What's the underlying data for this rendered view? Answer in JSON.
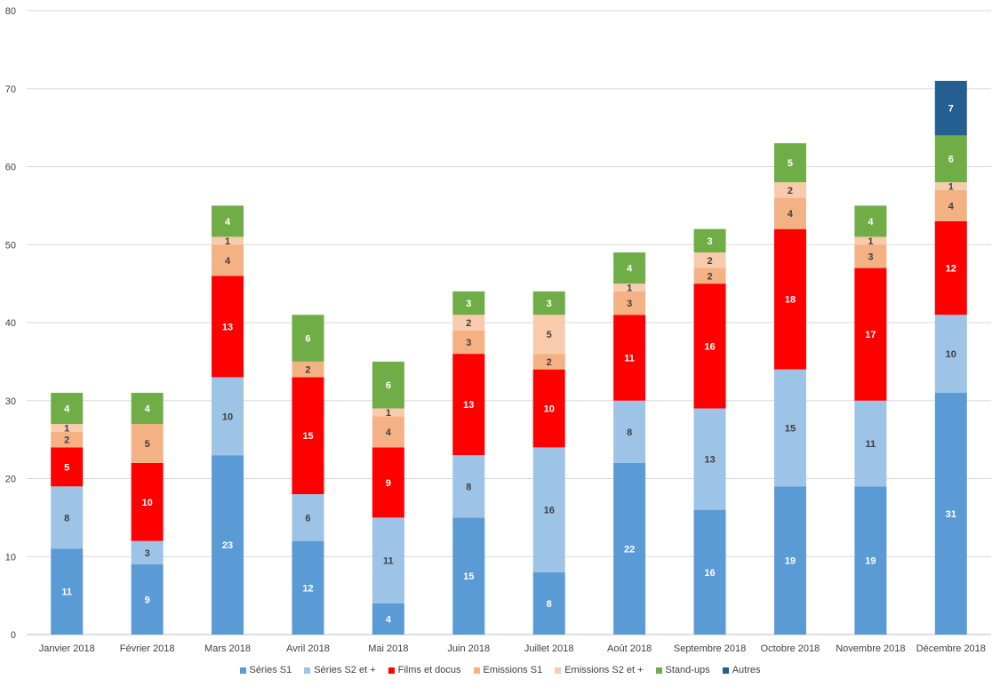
{
  "chart_data": {
    "type": "bar",
    "stacked": true,
    "title": "",
    "xlabel": "",
    "ylabel": "",
    "ylim": [
      0,
      80
    ],
    "yticks": [
      0,
      10,
      20,
      30,
      40,
      50,
      60,
      70,
      80
    ],
    "grid": true,
    "legend_position": "bottom",
    "categories": [
      "Janvier 2018",
      "Février 2018",
      "Mars 2018",
      "Avril 2018",
      "Mai 2018",
      "Juin 2018",
      "Juillet 2018",
      "Août 2018",
      "Septembre 2018",
      "Octobre 2018",
      "Novembre 2018",
      "Décembre 2018"
    ],
    "series": [
      {
        "name": "Séries S1",
        "color": "#5b9bd5",
        "label_color": "#ffffff",
        "values": [
          11,
          9,
          23,
          12,
          4,
          15,
          8,
          22,
          16,
          19,
          19,
          31
        ]
      },
      {
        "name": "Séries S2 et +",
        "color": "#9dc3e6",
        "label_color": "#404040",
        "values": [
          8,
          3,
          10,
          6,
          11,
          8,
          16,
          8,
          13,
          15,
          11,
          10
        ]
      },
      {
        "name": "Films et docus",
        "color": "#ff0000",
        "label_color": "#ffffff",
        "values": [
          5,
          10,
          13,
          15,
          9,
          13,
          10,
          11,
          16,
          18,
          17,
          12
        ]
      },
      {
        "name": "Emissions S1",
        "color": "#f4b183",
        "label_color": "#404040",
        "values": [
          2,
          5,
          4,
          2,
          4,
          3,
          2,
          3,
          2,
          4,
          3,
          4
        ]
      },
      {
        "name": "Emissions S2 et +",
        "color": "#f8cbad",
        "label_color": "#404040",
        "values": [
          1,
          0,
          1,
          0,
          1,
          2,
          5,
          1,
          2,
          2,
          1,
          1
        ]
      },
      {
        "name": "Stand-ups",
        "color": "#70ad47",
        "label_color": "#ffffff",
        "values": [
          4,
          4,
          4,
          6,
          6,
          3,
          3,
          4,
          3,
          5,
          4,
          6
        ]
      },
      {
        "name": "Autres",
        "color": "#255e91",
        "label_color": "#ffffff",
        "values": [
          0,
          0,
          0,
          0,
          0,
          0,
          0,
          0,
          0,
          0,
          0,
          7
        ]
      }
    ]
  }
}
